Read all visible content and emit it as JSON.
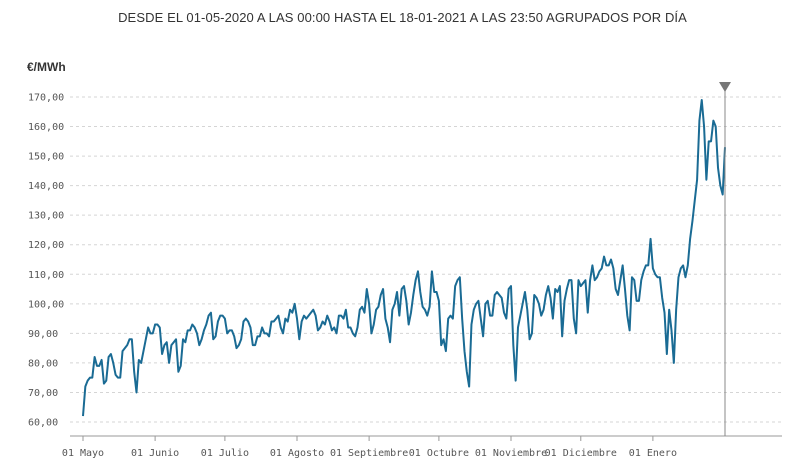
{
  "title": "DESDE EL 01-05-2020 A LAS 00:00 HASTA EL 18-01-2021 A LAS 23:50 AGRUPADOS POR DÍA",
  "unit": "€/MWh",
  "chart_data": {
    "type": "line",
    "title": "DESDE EL 01-05-2020 A LAS 00:00 HASTA EL 18-01-2021 A LAS 23:50 AGRUPADOS POR DÍA",
    "ylabel": "€/MWh",
    "xlabel": "",
    "ylim": [
      57,
      180
    ],
    "yticks": [
      "60,00",
      "70,00",
      "80,00",
      "90,00",
      "100,00",
      "110,00",
      "120,00",
      "130,00",
      "140,00",
      "150,00",
      "160,00",
      "170,00"
    ],
    "ytick_values": [
      60,
      70,
      80,
      90,
      100,
      110,
      120,
      130,
      140,
      150,
      160,
      170
    ],
    "xticks": [
      {
        "label": "01 Mayo",
        "day": 0
      },
      {
        "label": "01 Junio",
        "day": 31
      },
      {
        "label": "01 Julio",
        "day": 61
      },
      {
        "label": "01 Agosto",
        "day": 92
      },
      {
        "label": "01 Septiembre",
        "day": 123
      },
      {
        "label": "01 Octubre",
        "day": 153
      },
      {
        "label": "01 Noviembre",
        "day": 184
      },
      {
        "label": "01 Diciembre",
        "day": 214
      },
      {
        "label": "01 Enero",
        "day": 245
      }
    ],
    "x_start": "2020-05-01",
    "x_end": "2021-01-18",
    "grid": true,
    "marker": "end",
    "line_color": "#1a6b94",
    "series": [
      {
        "values": [
          62,
          72,
          74,
          75,
          75,
          82,
          79,
          79,
          81,
          73,
          74,
          82,
          83,
          80,
          76,
          75,
          75,
          84,
          85,
          86,
          88,
          88,
          77,
          70,
          81,
          80,
          84,
          88,
          92,
          90,
          90,
          93,
          93,
          92,
          83,
          86,
          87,
          80,
          86,
          87,
          88,
          77,
          79,
          88,
          87,
          91,
          91,
          93,
          92,
          90,
          86,
          88,
          91,
          93,
          96,
          97,
          88,
          89,
          94,
          96,
          96,
          95,
          90,
          91,
          91,
          89,
          85,
          86,
          88,
          94,
          95,
          94,
          92,
          86,
          86,
          89,
          89,
          92,
          90,
          90,
          89,
          94,
          94,
          95,
          96,
          92,
          90,
          95,
          94,
          98,
          97,
          100,
          95,
          88,
          94,
          96,
          95,
          96,
          97,
          98,
          96,
          91,
          92,
          94,
          93,
          96,
          94,
          91,
          92,
          90,
          96,
          96,
          95,
          98,
          92,
          92,
          90,
          89,
          92,
          98,
          99,
          97,
          105,
          100,
          90,
          93,
          98,
          99,
          103,
          105,
          95,
          92,
          87,
          98,
          100,
          104,
          96,
          105,
          106,
          101,
          93,
          97,
          103,
          108,
          111,
          104,
          99,
          98,
          96,
          99,
          111,
          104,
          104,
          101,
          86,
          88,
          84,
          95,
          96,
          95,
          106,
          108,
          109,
          95,
          84,
          77,
          72,
          93,
          98,
          100,
          101,
          95,
          89,
          100,
          101,
          96,
          96,
          103,
          104,
          103,
          102,
          97,
          95,
          105,
          106,
          86,
          74,
          92,
          96,
          100,
          104,
          98,
          88,
          90,
          103,
          102,
          100,
          96,
          98,
          103,
          106,
          102,
          95,
          105,
          104,
          106,
          89,
          101,
          105,
          108,
          108,
          95,
          90,
          108,
          106,
          107,
          108,
          97,
          108,
          113,
          108,
          109,
          111,
          112,
          116,
          113,
          113,
          115,
          112,
          105,
          103,
          108,
          113,
          105,
          96,
          91,
          109,
          108,
          101,
          101,
          108,
          111,
          113,
          113,
          122,
          112,
          110,
          109,
          109,
          102,
          97,
          83,
          98,
          91,
          80,
          98,
          109,
          112,
          113,
          109,
          113,
          122,
          128,
          135,
          142,
          162,
          169,
          160,
          142,
          155,
          155,
          162,
          160,
          146,
          140,
          137,
          153
        ]
      }
    ]
  }
}
